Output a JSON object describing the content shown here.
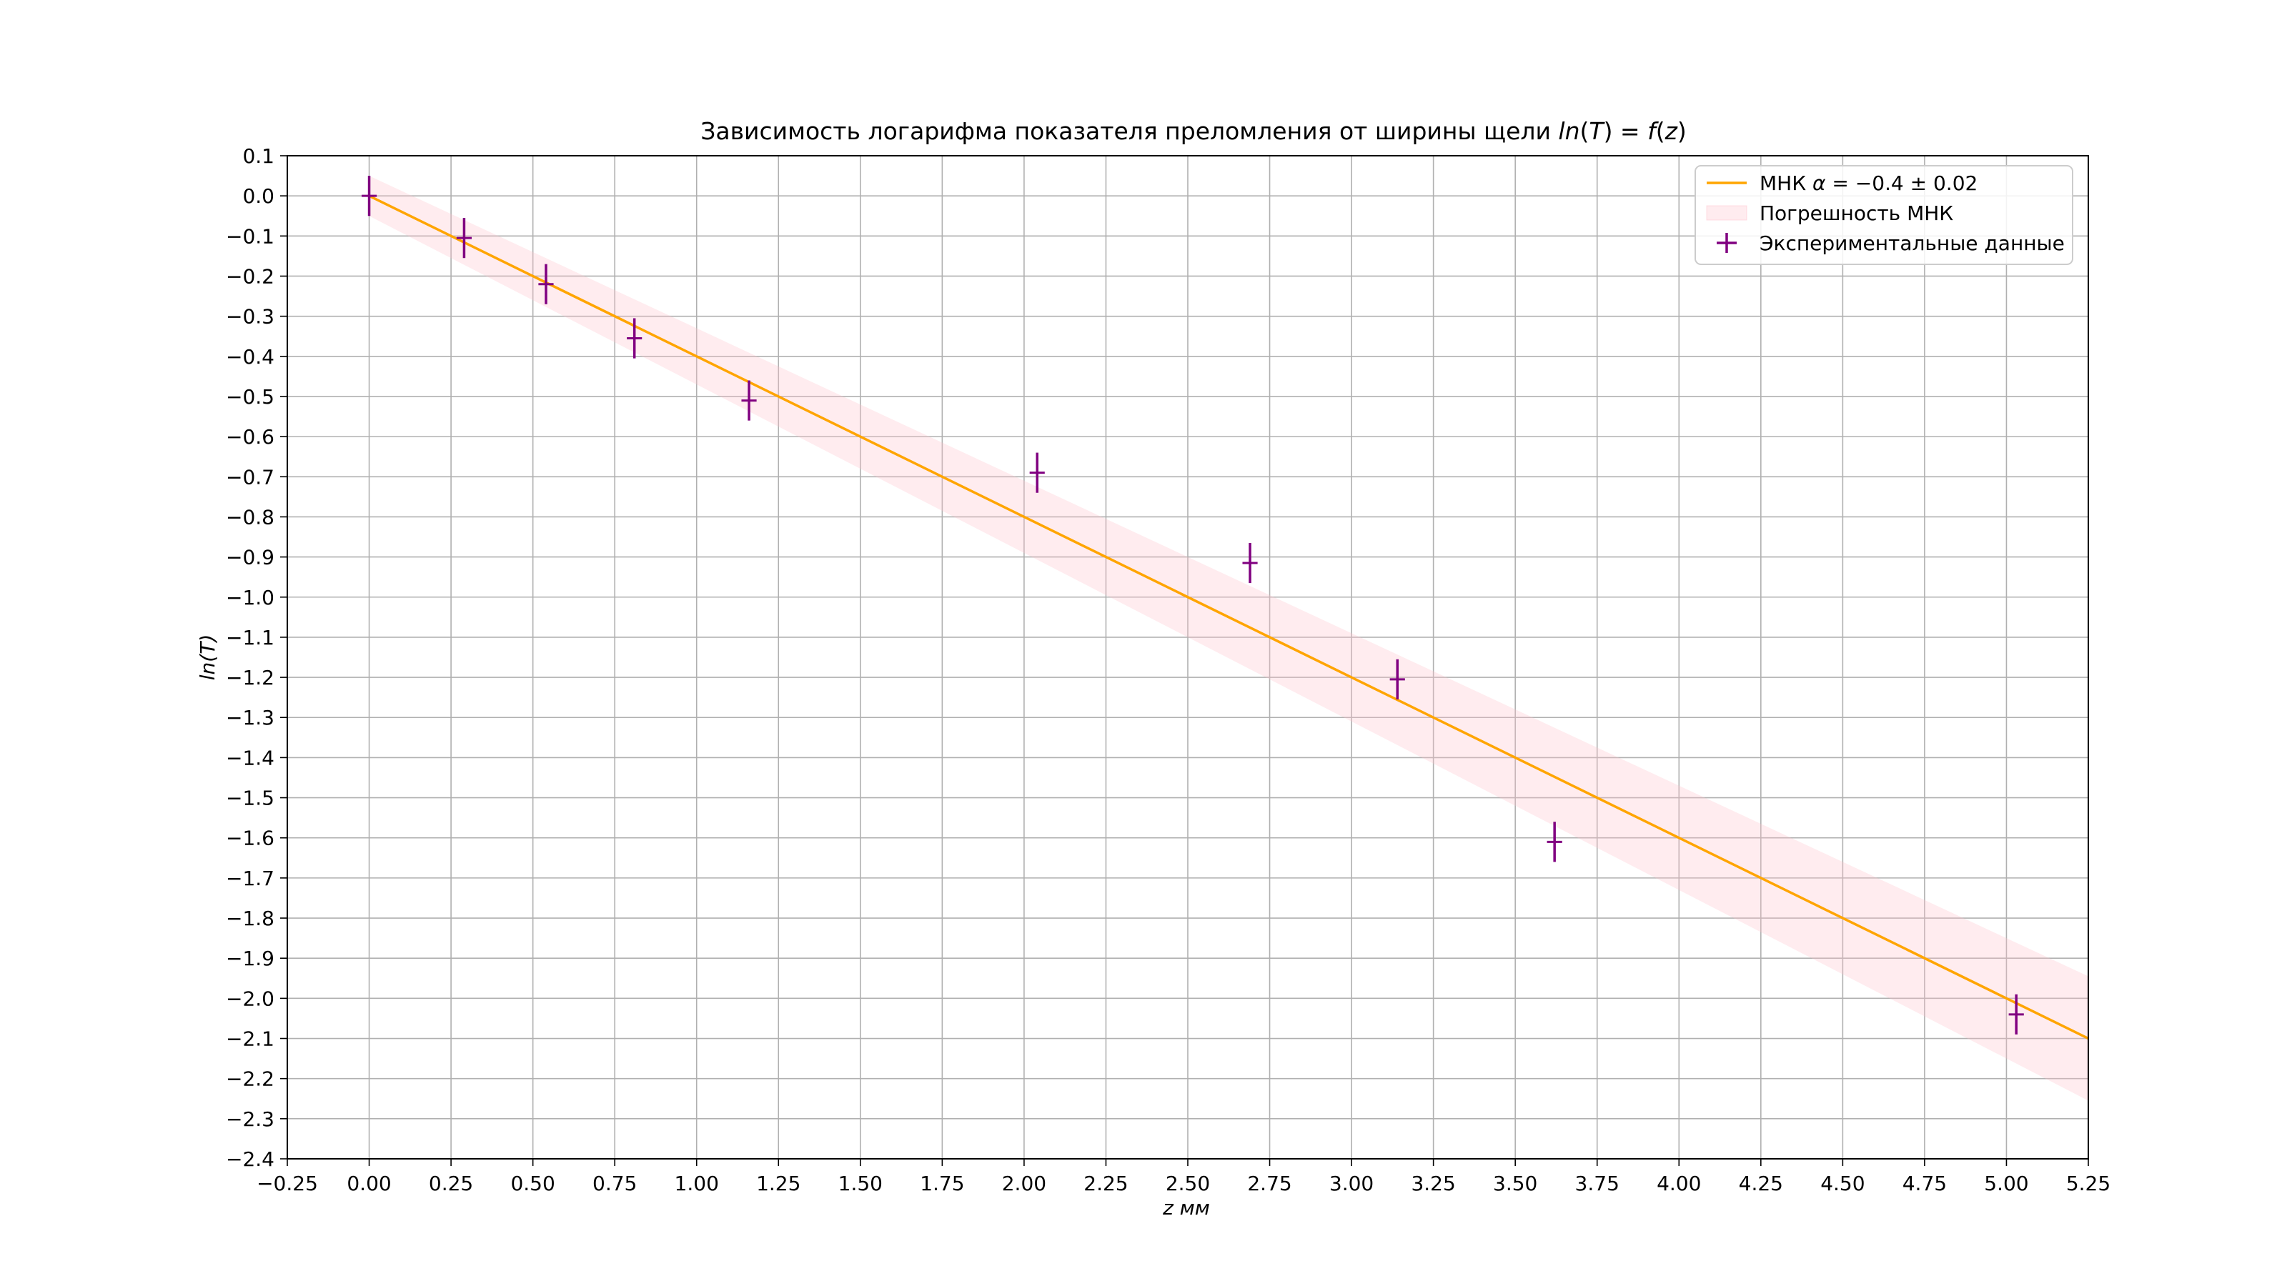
{
  "chart_data": {
    "type": "scatter",
    "title": "Зависимость логарифма показателя преломления от ширины щели ln(T) = f(z)",
    "xlabel": "z мм",
    "ylabel": "ln(T)",
    "xlim": [
      -0.25,
      5.25
    ],
    "ylim": [
      -2.4,
      0.1
    ],
    "x_ticks": [
      "−0.25",
      "0.00",
      "0.25",
      "0.50",
      "0.75",
      "1.00",
      "1.25",
      "1.50",
      "1.75",
      "2.00",
      "2.25",
      "2.50",
      "2.75",
      "3.00",
      "3.25",
      "3.50",
      "3.75",
      "4.00",
      "4.25",
      "4.50",
      "4.75",
      "5.00",
      "5.25"
    ],
    "x_tick_values": [
      -0.25,
      0,
      0.25,
      0.5,
      0.75,
      1,
      1.25,
      1.5,
      1.75,
      2,
      2.25,
      2.5,
      2.75,
      3,
      3.25,
      3.5,
      3.75,
      4,
      4.25,
      4.5,
      4.75,
      5,
      5.25
    ],
    "y_ticks": [
      "0.1",
      "0.0",
      "−0.1",
      "−0.2",
      "−0.3",
      "−0.4",
      "−0.5",
      "−0.6",
      "−0.7",
      "−0.8",
      "−0.9",
      "−1.0",
      "−1.1",
      "−1.2",
      "−1.3",
      "−1.4",
      "−1.5",
      "−1.6",
      "−1.7",
      "−1.8",
      "−1.9",
      "−2.0",
      "−2.1",
      "−2.2",
      "−2.3",
      "−2.4"
    ],
    "y_tick_values": [
      0.1,
      0,
      -0.1,
      -0.2,
      -0.3,
      -0.4,
      -0.5,
      -0.6,
      -0.7,
      -0.8,
      -0.9,
      -1.0,
      -1.1,
      -1.2,
      -1.3,
      -1.4,
      -1.5,
      -1.6,
      -1.7,
      -1.8,
      -1.9,
      -2.0,
      -2.1,
      -2.2,
      -2.3,
      -2.4
    ],
    "grid": true,
    "legend_position": "top-right",
    "series": [
      {
        "name": "МНК α = −0.4 ± 0.02",
        "kind": "line",
        "color": "#ffa500",
        "slope": -0.4,
        "intercept": 0.0
      },
      {
        "name": "Погрешность МНК",
        "kind": "band",
        "color": "#ffc0cb",
        "slope_low": -0.42,
        "slope_high": -0.38,
        "intercept_halfwidth": 0.05
      },
      {
        "name": "Экспериментальные данные",
        "kind": "errorbar",
        "color": "#800080",
        "x": [
          0.0,
          0.29,
          0.54,
          0.81,
          1.16,
          2.04,
          2.69,
          3.14,
          3.62,
          5.03
        ],
        "y": [
          0.0,
          -0.105,
          -0.22,
          -0.355,
          -0.51,
          -0.69,
          -0.915,
          -1.205,
          -1.61,
          -2.04
        ],
        "x_err": [
          0.01,
          0.01,
          0.01,
          0.01,
          0.01,
          0.01,
          0.01,
          0.01,
          0.01,
          0.01
        ],
        "y_err": [
          0.05,
          0.05,
          0.05,
          0.05,
          0.05,
          0.05,
          0.05,
          0.05,
          0.05,
          0.05
        ]
      }
    ]
  }
}
